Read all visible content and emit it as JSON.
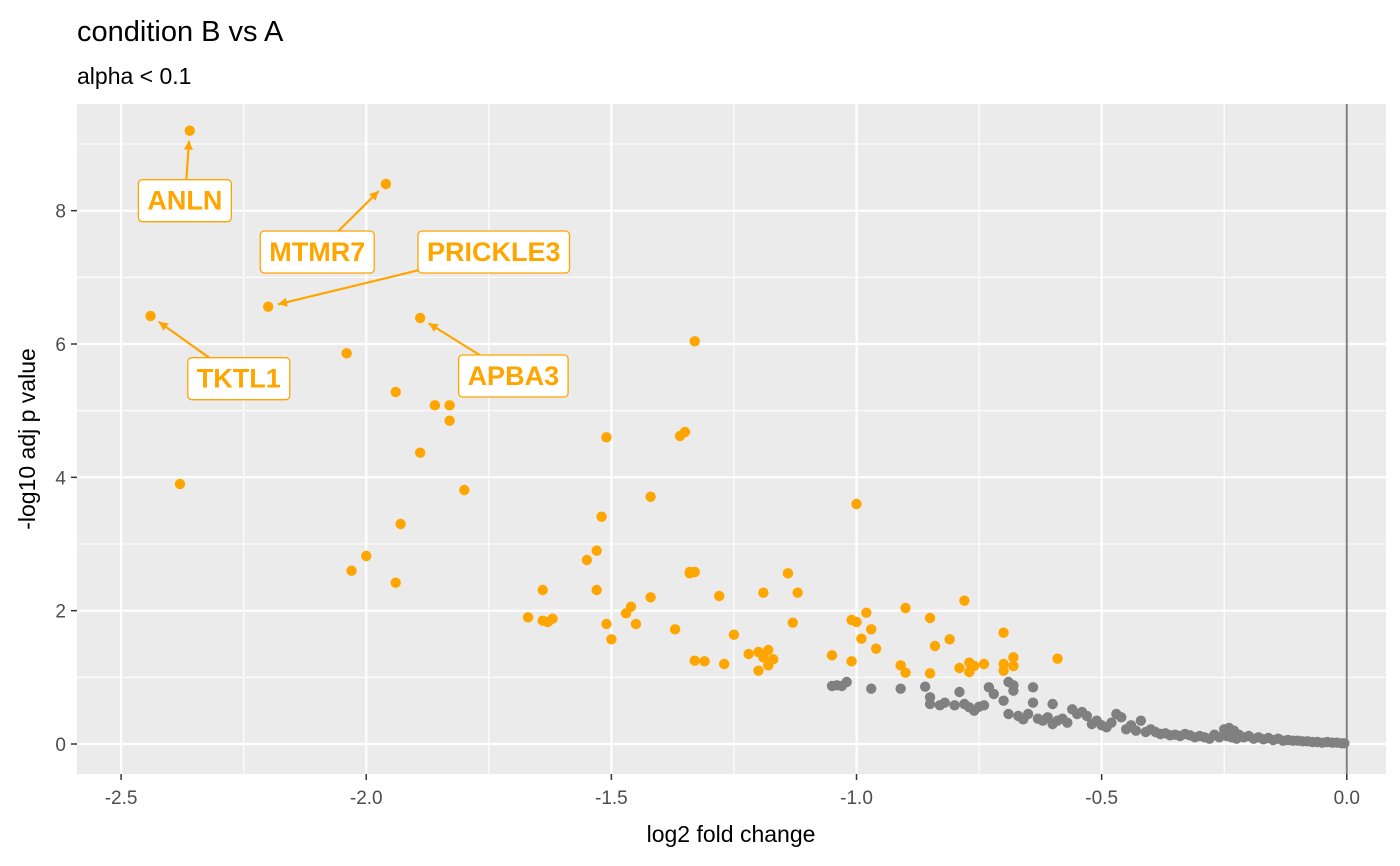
{
  "chart_data": {
    "type": "scatter",
    "title": "condition B vs A",
    "subtitle": "alpha < 0.1",
    "xlabel": "log2 fold change",
    "ylabel": "-log10 adj p value",
    "xlim": [
      -2.59,
      0.08
    ],
    "ylim": [
      -0.45,
      9.6
    ],
    "x_ticks": [
      -2.5,
      -2.0,
      -1.5,
      -1.0,
      -0.5,
      0.0
    ],
    "x_tick_labels": [
      "-2.5",
      "-2.0",
      "-1.5",
      "-1.0",
      "-0.5",
      "0.0"
    ],
    "y_ticks": [
      0,
      2,
      4,
      6,
      8
    ],
    "y_tick_labels": [
      "0",
      "2",
      "4",
      "6",
      "8"
    ],
    "vline_x": 0,
    "grid": true,
    "colors": {
      "significant": "#FFA500",
      "not_significant": "#808080",
      "panel_bg": "#EBEBEB",
      "grid": "#FFFFFF",
      "vline": "#808080"
    },
    "series": [
      {
        "color": "#FFA500",
        "x": [
          -2.36,
          -1.96,
          -2.44,
          -2.2,
          -1.89,
          -1.33,
          -2.04,
          -1.94,
          -1.86,
          -1.83,
          -1.83,
          -1.89,
          -2.38,
          -1.8,
          -1.51,
          -1.36,
          -1.35,
          -1.42,
          -1.52,
          -1.93,
          -1.53,
          -1.55,
          -2.0,
          -2.03,
          -1.94,
          -1.34,
          -1.33,
          -1.34,
          -1.64,
          -1.53,
          -1.46,
          -1.42,
          -1.28,
          -1.47,
          -1.67,
          -1.63,
          -1.62,
          -1.64,
          -1.51,
          -1.45,
          -1.37,
          -1.5,
          -1.0,
          -1.14,
          -1.12,
          -1.19,
          -1.25,
          -1.13,
          -1.2,
          -1.22,
          -1.18,
          -1.19,
          -1.17,
          -1.18,
          -1.2,
          -1.33,
          -1.31,
          -1.27,
          -0.78,
          -0.9,
          -0.98,
          -1.01,
          -1.0,
          -0.97,
          -0.85,
          -0.81,
          -0.99,
          -0.96,
          -0.84,
          -1.05,
          -1.01,
          -0.91,
          -0.7,
          -0.68,
          -0.77,
          -0.7,
          -0.74,
          -0.68,
          -0.79,
          -0.77,
          -0.9,
          -0.85,
          -0.76,
          -0.7,
          -0.59
        ],
        "y": [
          9.2,
          8.4,
          6.42,
          6.56,
          6.39,
          6.04,
          5.86,
          5.28,
          5.08,
          5.08,
          4.85,
          4.37,
          3.9,
          3.81,
          4.6,
          4.62,
          4.68,
          3.71,
          3.41,
          3.3,
          2.9,
          2.76,
          2.82,
          2.6,
          2.42,
          2.58,
          2.58,
          2.56,
          2.31,
          2.31,
          2.06,
          2.2,
          2.22,
          1.96,
          1.9,
          1.83,
          1.88,
          1.85,
          1.8,
          1.8,
          1.72,
          1.57,
          3.6,
          2.56,
          2.27,
          2.27,
          1.64,
          1.82,
          1.38,
          1.35,
          1.41,
          1.3,
          1.27,
          1.18,
          1.1,
          1.25,
          1.24,
          1.2,
          2.15,
          2.04,
          1.97,
          1.86,
          1.83,
          1.72,
          1.89,
          1.57,
          1.58,
          1.43,
          1.47,
          1.33,
          1.24,
          1.18,
          1.67,
          1.3,
          1.22,
          1.2,
          1.2,
          1.17,
          1.14,
          1.08,
          1.07,
          1.06,
          1.17,
          1.1,
          1.28
        ]
      },
      {
        "color": "#808080",
        "x": [
          -1.05,
          -1.04,
          -1.03,
          -1.02,
          -0.97,
          -0.91,
          -0.86,
          -0.85,
          -0.85,
          -0.83,
          -0.82,
          -0.8,
          -0.79,
          -0.78,
          -0.77,
          -0.76,
          -0.75,
          -0.74,
          -0.73,
          -0.72,
          -0.7,
          -0.69,
          -0.68,
          -0.67,
          -0.66,
          -0.65,
          -0.64,
          -0.63,
          -0.62,
          -0.61,
          -0.6,
          -0.59,
          -0.58,
          -0.57,
          -0.56,
          -0.55,
          -0.54,
          -0.53,
          -0.52,
          -0.51,
          -0.5,
          -0.49,
          -0.48,
          -0.47,
          -0.46,
          -0.45,
          -0.44,
          -0.43,
          -0.42,
          -0.41,
          -0.4,
          -0.39,
          -0.38,
          -0.37,
          -0.36,
          -0.35,
          -0.34,
          -0.33,
          -0.32,
          -0.31,
          -0.3,
          -0.29,
          -0.28,
          -0.27,
          -0.26,
          -0.25,
          -0.245,
          -0.24,
          -0.235,
          -0.23,
          -0.225,
          -0.22,
          -0.21,
          -0.2,
          -0.19,
          -0.18,
          -0.17,
          -0.16,
          -0.15,
          -0.14,
          -0.13,
          -0.12,
          -0.11,
          -0.1,
          -0.09,
          -0.08,
          -0.07,
          -0.06,
          -0.05,
          -0.04,
          -0.03,
          -0.02,
          -0.01,
          -0.005,
          -0.69,
          -0.64,
          -0.68,
          -0.6
        ],
        "y": [
          0.87,
          0.88,
          0.87,
          0.93,
          0.83,
          0.83,
          0.86,
          0.7,
          0.6,
          0.58,
          0.62,
          0.58,
          0.78,
          0.6,
          0.55,
          0.5,
          0.56,
          0.58,
          0.85,
          0.75,
          0.65,
          0.45,
          0.8,
          0.42,
          0.37,
          0.45,
          0.62,
          0.38,
          0.35,
          0.4,
          0.3,
          0.35,
          0.38,
          0.32,
          0.52,
          0.45,
          0.48,
          0.42,
          0.3,
          0.35,
          0.28,
          0.25,
          0.32,
          0.45,
          0.4,
          0.22,
          0.28,
          0.2,
          0.35,
          0.18,
          0.22,
          0.18,
          0.15,
          0.16,
          0.13,
          0.14,
          0.12,
          0.15,
          0.13,
          0.1,
          0.12,
          0.1,
          0.08,
          0.14,
          0.1,
          0.22,
          0.12,
          0.24,
          0.1,
          0.2,
          0.08,
          0.14,
          0.1,
          0.12,
          0.08,
          0.1,
          0.07,
          0.09,
          0.06,
          0.08,
          0.05,
          0.06,
          0.05,
          0.05,
          0.04,
          0.04,
          0.03,
          0.03,
          0.02,
          0.03,
          0.02,
          0.02,
          0.01,
          0.01,
          0.93,
          0.85,
          0.88,
          0.6
        ]
      }
    ],
    "annotations": [
      {
        "text": "ANLN",
        "x": -2.36,
        "y": 9.2,
        "label_x": -2.37,
        "label_y": 8.15
      },
      {
        "text": "MTMR7",
        "x": -1.96,
        "y": 8.4,
        "label_x": -2.1,
        "label_y": 7.38
      },
      {
        "text": "PRICKLE3",
        "x": -2.2,
        "y": 6.56,
        "label_x": -1.74,
        "label_y": 7.38
      },
      {
        "text": "TKTL1",
        "x": -2.44,
        "y": 6.42,
        "label_x": -2.26,
        "label_y": 5.48
      },
      {
        "text": "APBA3",
        "x": -1.89,
        "y": 6.39,
        "label_x": -1.7,
        "label_y": 5.52
      }
    ]
  }
}
